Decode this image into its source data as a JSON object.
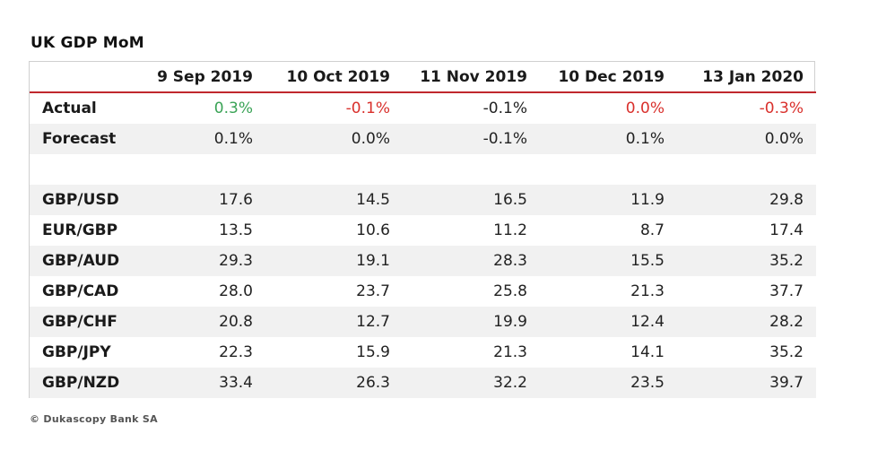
{
  "title": "UK GDP MoM",
  "columns": [
    "9 Sep 2019",
    "10 Oct 2019",
    "11 Nov 2019",
    "10 Dec 2019",
    "13 Jan 2020"
  ],
  "rows": [
    {
      "label": "Actual",
      "values": [
        "0.3%",
        "-0.1%",
        "-0.1%",
        "0.0%",
        "-0.3%"
      ],
      "colors": [
        "#3aa356",
        "#d9302c",
        "#222222",
        "#d9302c",
        "#d9302c"
      ]
    },
    {
      "label": "Forecast",
      "values": [
        "0.1%",
        "0.0%",
        "-0.1%",
        "0.1%",
        "0.0%"
      ]
    },
    {
      "label": "",
      "values": [
        "",
        "",
        "",
        "",
        ""
      ]
    },
    {
      "label": "GBP/USD",
      "values": [
        "17.6",
        "14.5",
        "16.5",
        "11.9",
        "29.8"
      ]
    },
    {
      "label": "EUR/GBP",
      "values": [
        "13.5",
        "10.6",
        "11.2",
        "8.7",
        "17.4"
      ]
    },
    {
      "label": "GBP/AUD",
      "values": [
        "29.3",
        "19.1",
        "28.3",
        "15.5",
        "35.2"
      ]
    },
    {
      "label": "GBP/CAD",
      "values": [
        "28.0",
        "23.7",
        "25.8",
        "21.3",
        "37.7"
      ]
    },
    {
      "label": "GBP/CHF",
      "values": [
        "20.8",
        "12.7",
        "19.9",
        "12.4",
        "28.2"
      ]
    },
    {
      "label": "GBP/JPY",
      "values": [
        "22.3",
        "15.9",
        "21.3",
        "14.1",
        "35.2"
      ]
    },
    {
      "label": "GBP/NZD",
      "values": [
        "33.4",
        "26.3",
        "32.2",
        "23.5",
        "39.7"
      ]
    }
  ],
  "footer": "© Dukascopy Bank SA",
  "colors": {
    "header_rule": "#c0282d",
    "positive": "#3aa356",
    "negative": "#d9302c",
    "stripe": "#f1f1f1"
  }
}
